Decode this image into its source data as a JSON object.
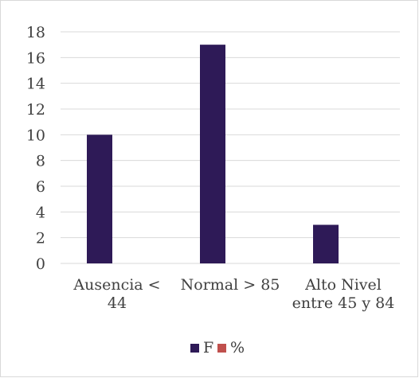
{
  "chart_data": {
    "type": "bar",
    "categories": [
      [
        "Ausencia <",
        "44"
      ],
      [
        "Normal > 85"
      ],
      [
        "Alto Nivel",
        "entre 45 y 84"
      ]
    ],
    "series": [
      {
        "name": "F",
        "color": "#2e1a57",
        "values": [
          10,
          17,
          3
        ]
      },
      {
        "name": "%",
        "color": "#c0504d",
        "values": [
          0,
          0,
          0
        ]
      }
    ],
    "ylim": [
      0,
      18
    ],
    "yticks": [
      0,
      2,
      4,
      6,
      8,
      10,
      12,
      14,
      16,
      18
    ],
    "grid": true,
    "legend_position": "bottom"
  }
}
